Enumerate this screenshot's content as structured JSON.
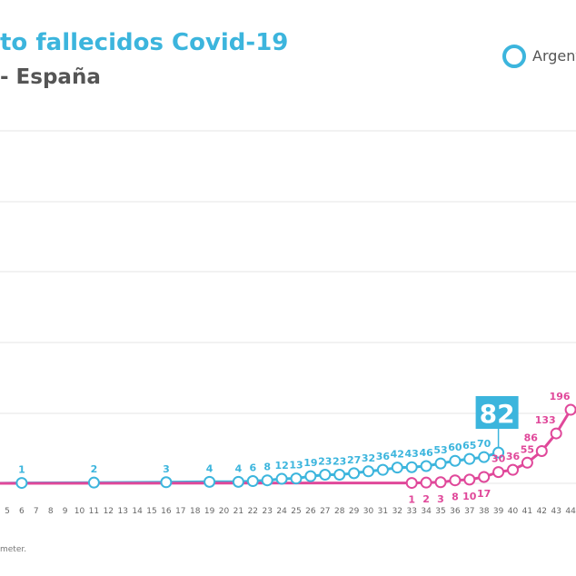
{
  "header": {
    "title": "to fallecidos Covid-19",
    "subtitle": "- España"
  },
  "legend": {
    "items": [
      {
        "name": "Argent",
        "color": "#3cb5dd"
      }
    ]
  },
  "source_text": "meter.",
  "chart_data": {
    "type": "line",
    "x_ticks": [
      5,
      6,
      7,
      8,
      9,
      10,
      11,
      12,
      13,
      14,
      15,
      16,
      17,
      18,
      19,
      20,
      21,
      22,
      23,
      24,
      25,
      26,
      27,
      28,
      29,
      30,
      31,
      32,
      33,
      34,
      35,
      36,
      37,
      38,
      39,
      40,
      41,
      42,
      43,
      44
    ],
    "grid": true,
    "series": [
      {
        "color": "#3cb5dd",
        "points": [
          [
            4,
            0
          ],
          [
            6,
            1
          ],
          [
            11,
            2
          ],
          [
            16,
            3
          ],
          [
            19,
            4
          ],
          [
            21,
            4
          ],
          [
            22,
            6
          ],
          [
            23,
            8
          ],
          [
            24,
            12
          ],
          [
            25,
            13
          ],
          [
            26,
            19
          ],
          [
            27,
            23
          ],
          [
            28,
            23
          ],
          [
            29,
            27
          ],
          [
            30,
            32
          ],
          [
            31,
            36
          ],
          [
            32,
            42
          ],
          [
            33,
            43
          ],
          [
            34,
            46
          ],
          [
            35,
            53
          ],
          [
            36,
            60
          ],
          [
            37,
            65
          ],
          [
            38,
            70
          ],
          [
            39,
            82
          ]
        ],
        "labels": [
          [
            6,
            "1"
          ],
          [
            11,
            "2"
          ],
          [
            16,
            "3"
          ],
          [
            19,
            "4"
          ],
          [
            21,
            "4"
          ],
          [
            22,
            "6"
          ],
          [
            23,
            "8"
          ],
          [
            24,
            "12"
          ],
          [
            25,
            "13"
          ],
          [
            26,
            "19"
          ],
          [
            27,
            "23"
          ],
          [
            28,
            "23"
          ],
          [
            29,
            "27"
          ],
          [
            30,
            "32"
          ],
          [
            31,
            "36"
          ],
          [
            32,
            "42"
          ],
          [
            33,
            "43"
          ],
          [
            34,
            "46"
          ],
          [
            35,
            "53"
          ],
          [
            36,
            "60"
          ],
          [
            37,
            "65"
          ],
          [
            38,
            "70"
          ]
        ]
      },
      {
        "color": "#e0489a",
        "points": [
          [
            4,
            0
          ],
          [
            33,
            1
          ],
          [
            34,
            2
          ],
          [
            35,
            3
          ],
          [
            36,
            8
          ],
          [
            37,
            10
          ],
          [
            38,
            17
          ],
          [
            39,
            30
          ],
          [
            40,
            36
          ],
          [
            41,
            55
          ],
          [
            42,
            86
          ],
          [
            43,
            133
          ],
          [
            44,
            196
          ]
        ],
        "labels": [
          [
            33,
            "1"
          ],
          [
            34,
            "2"
          ],
          [
            35,
            "3"
          ],
          [
            36,
            "8"
          ],
          [
            37,
            "10"
          ],
          [
            38,
            "17"
          ],
          [
            39,
            "30"
          ],
          [
            40,
            "36"
          ],
          [
            41,
            "55"
          ],
          [
            42,
            "86"
          ],
          [
            43,
            "133"
          ],
          [
            44,
            "196"
          ]
        ]
      }
    ],
    "highlight": {
      "x": 39,
      "value": "82",
      "color": "#3cb5dd"
    }
  }
}
